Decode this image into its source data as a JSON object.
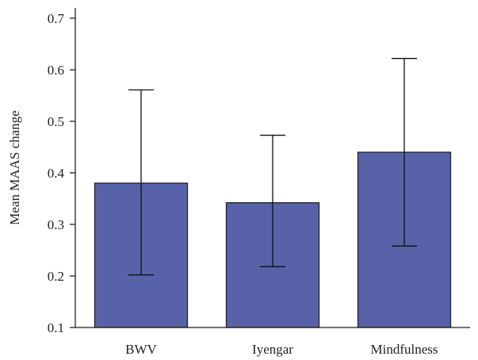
{
  "chart_data": {
    "type": "bar",
    "title": "",
    "xlabel": "",
    "ylabel": "Mean MAAS change",
    "categories": [
      "BWV",
      "Iyengar",
      "Mindfulness"
    ],
    "values": [
      0.38,
      0.342,
      0.44
    ],
    "error_low": [
      0.202,
      0.218,
      0.258
    ],
    "error_high": [
      0.561,
      0.473,
      0.622
    ],
    "ylim": [
      0.1,
      0.72
    ],
    "yticks": [
      0.1,
      0.2,
      0.3,
      0.4,
      0.5,
      0.6,
      0.7
    ],
    "ytick_labels": [
      "0.1",
      "0.2",
      "0.3",
      "0.4",
      "0.5",
      "0.6",
      "0.7"
    ],
    "grid": false,
    "bar_color": "#5862a8",
    "error_bar_color": "#111111"
  }
}
